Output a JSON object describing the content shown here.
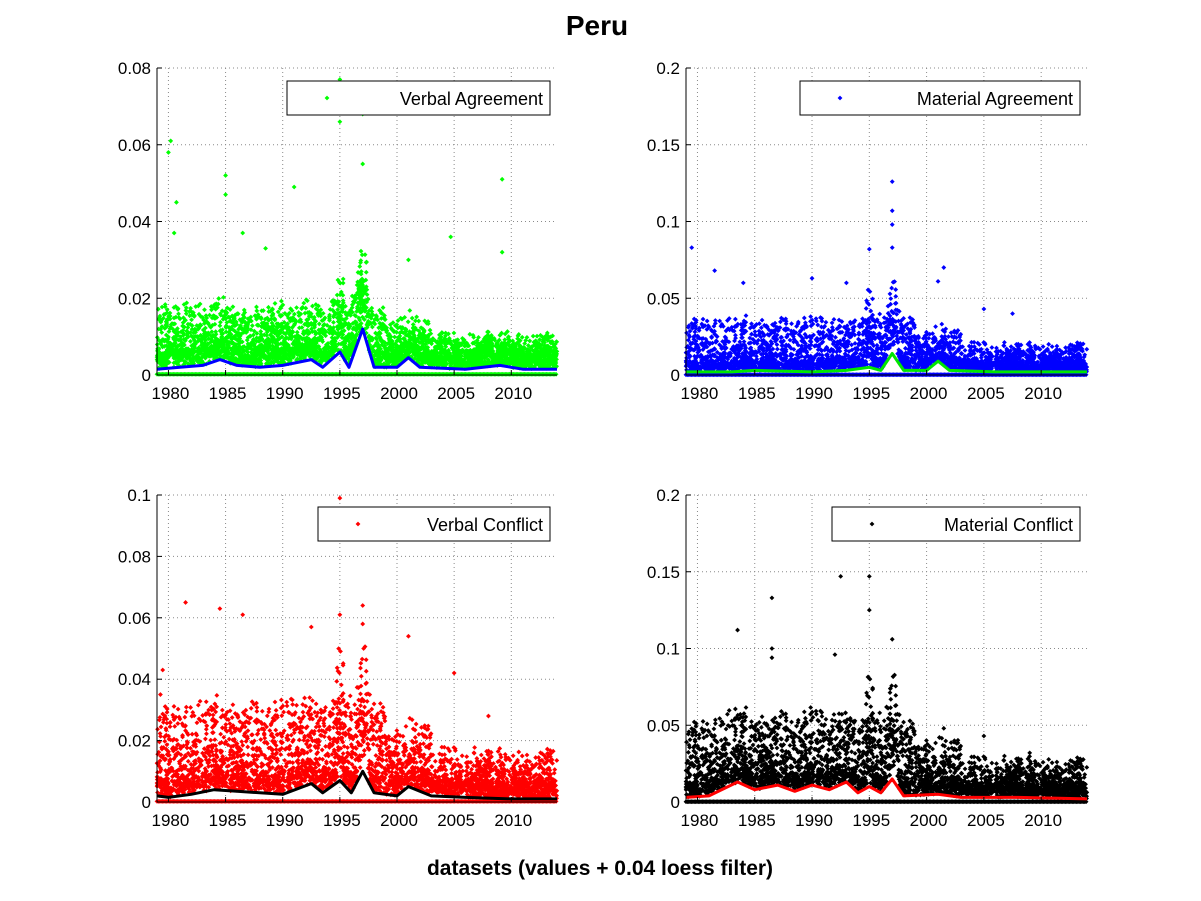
{
  "figure": {
    "title": "Peru",
    "xlabel": "datasets (values + 0.04 loess filter)"
  },
  "chart_data": [
    {
      "type": "scatter",
      "name": "Verbal Agreement",
      "legend": "top-right",
      "grid": true,
      "xlim": [
        1979,
        2014
      ],
      "ylim": [
        0,
        0.08
      ],
      "yticks": [
        "0",
        "0.02",
        "0.04",
        "0.06",
        "0.08"
      ],
      "ytick_values": [
        0,
        0.02,
        0.04,
        0.06,
        0.08
      ],
      "xticks": [
        "1980",
        "1985",
        "1990",
        "1995",
        "2000",
        "2005",
        "2010"
      ],
      "xtick_values": [
        1980,
        1985,
        1990,
        1995,
        2000,
        2005,
        2010
      ],
      "marker_color": "#00ff00",
      "trend_color": "#0000ff",
      "scatter_base": 0.004,
      "scatter_spread": 0.006,
      "points_per_year": 110,
      "highlights": [
        {
          "x": 1980.2,
          "y": 0.061
        },
        {
          "x": 1980.0,
          "y": 0.058
        },
        {
          "x": 1980.7,
          "y": 0.045
        },
        {
          "x": 1980.5,
          "y": 0.037
        },
        {
          "x": 1985.0,
          "y": 0.052
        },
        {
          "x": 1985.0,
          "y": 0.047
        },
        {
          "x": 1986.5,
          "y": 0.037
        },
        {
          "x": 1988.5,
          "y": 0.033
        },
        {
          "x": 1991.0,
          "y": 0.049
        },
        {
          "x": 1995.0,
          "y": 0.077
        },
        {
          "x": 1995.0,
          "y": 0.066
        },
        {
          "x": 1997.0,
          "y": 0.075
        },
        {
          "x": 1997.0,
          "y": 0.068
        },
        {
          "x": 1997.0,
          "y": 0.055
        },
        {
          "x": 2001.0,
          "y": 0.03
        },
        {
          "x": 2004.7,
          "y": 0.036
        },
        {
          "x": 2009.2,
          "y": 0.051
        },
        {
          "x": 2009.2,
          "y": 0.032
        }
      ],
      "trend": [
        {
          "x": 1979,
          "y": 0.0015
        },
        {
          "x": 1981,
          "y": 0.002
        },
        {
          "x": 1983,
          "y": 0.0025
        },
        {
          "x": 1984.5,
          "y": 0.004
        },
        {
          "x": 1986,
          "y": 0.0025
        },
        {
          "x": 1988,
          "y": 0.002
        },
        {
          "x": 1990,
          "y": 0.0025
        },
        {
          "x": 1992.5,
          "y": 0.004
        },
        {
          "x": 1993.5,
          "y": 0.002
        },
        {
          "x": 1995,
          "y": 0.006
        },
        {
          "x": 1995.8,
          "y": 0.002
        },
        {
          "x": 1997,
          "y": 0.012
        },
        {
          "x": 1998,
          "y": 0.002
        },
        {
          "x": 2000,
          "y": 0.002
        },
        {
          "x": 2001,
          "y": 0.0045
        },
        {
          "x": 2002,
          "y": 0.002
        },
        {
          "x": 2006,
          "y": 0.0015
        },
        {
          "x": 2009,
          "y": 0.0025
        },
        {
          "x": 2011,
          "y": 0.0015
        },
        {
          "x": 2014,
          "y": 0.0015
        }
      ]
    },
    {
      "type": "scatter",
      "name": "Material Agreement",
      "legend": "top-right",
      "grid": true,
      "xlim": [
        1979,
        2014
      ],
      "ylim": [
        0,
        0.2
      ],
      "yticks": [
        "0",
        "0.05",
        "0.1",
        "0.15",
        "0.2"
      ],
      "ytick_values": [
        0,
        0.05,
        0.1,
        0.15,
        0.2
      ],
      "xticks": [
        "1980",
        "1985",
        "1990",
        "1995",
        "2000",
        "2005",
        "2010"
      ],
      "xtick_values": [
        1980,
        1985,
        1990,
        1995,
        2000,
        2005,
        2010
      ],
      "marker_color": "#0000ff",
      "trend_color": "#00e600",
      "scatter_base": 0.006,
      "scatter_spread": 0.014,
      "points_per_year": 90,
      "highlights": [
        {
          "x": 1979.5,
          "y": 0.083
        },
        {
          "x": 1981.5,
          "y": 0.068
        },
        {
          "x": 1984.0,
          "y": 0.06
        },
        {
          "x": 1990.0,
          "y": 0.063
        },
        {
          "x": 1993.0,
          "y": 0.06
        },
        {
          "x": 1995.0,
          "y": 0.082
        },
        {
          "x": 1997.0,
          "y": 0.126
        },
        {
          "x": 1997.0,
          "y": 0.107
        },
        {
          "x": 1997.0,
          "y": 0.098
        },
        {
          "x": 1997.0,
          "y": 0.083
        },
        {
          "x": 2001.5,
          "y": 0.07
        },
        {
          "x": 2001.0,
          "y": 0.061
        },
        {
          "x": 2005.0,
          "y": 0.043
        },
        {
          "x": 2007.5,
          "y": 0.04
        }
      ],
      "trend": [
        {
          "x": 1979,
          "y": 0.002
        },
        {
          "x": 1983,
          "y": 0.002
        },
        {
          "x": 1985,
          "y": 0.003
        },
        {
          "x": 1990,
          "y": 0.002
        },
        {
          "x": 1993,
          "y": 0.003
        },
        {
          "x": 1995,
          "y": 0.005
        },
        {
          "x": 1996,
          "y": 0.003
        },
        {
          "x": 1997,
          "y": 0.014
        },
        {
          "x": 1998,
          "y": 0.003
        },
        {
          "x": 2000,
          "y": 0.003
        },
        {
          "x": 2001,
          "y": 0.009
        },
        {
          "x": 2002,
          "y": 0.003
        },
        {
          "x": 2006,
          "y": 0.002
        },
        {
          "x": 2010,
          "y": 0.002
        },
        {
          "x": 2014,
          "y": 0.002
        }
      ]
    },
    {
      "type": "scatter",
      "name": "Verbal Conflict",
      "legend": "top-right",
      "grid": true,
      "xlim": [
        1979,
        2014
      ],
      "ylim": [
        0,
        0.1
      ],
      "yticks": [
        "0",
        "0.02",
        "0.04",
        "0.06",
        "0.08",
        "0.1"
      ],
      "ytick_values": [
        0,
        0.02,
        0.04,
        0.06,
        0.08,
        0.1
      ],
      "xticks": [
        "1980",
        "1985",
        "1990",
        "1995",
        "2000",
        "2005",
        "2010"
      ],
      "xtick_values": [
        1980,
        1985,
        1990,
        1995,
        2000,
        2005,
        2010
      ],
      "marker_color": "#ff0000",
      "trend_color": "#000000",
      "scatter_base": 0.005,
      "scatter_spread": 0.012,
      "points_per_year": 100,
      "highlights": [
        {
          "x": 1979.5,
          "y": 0.043
        },
        {
          "x": 1979.3,
          "y": 0.035
        },
        {
          "x": 1981.5,
          "y": 0.065
        },
        {
          "x": 1984.5,
          "y": 0.063
        },
        {
          "x": 1986.5,
          "y": 0.061
        },
        {
          "x": 1992.5,
          "y": 0.057
        },
        {
          "x": 1995.0,
          "y": 0.099
        },
        {
          "x": 1995.0,
          "y": 0.061
        },
        {
          "x": 1997.0,
          "y": 0.064
        },
        {
          "x": 1997.0,
          "y": 0.058
        },
        {
          "x": 2001.0,
          "y": 0.054
        },
        {
          "x": 2005.0,
          "y": 0.042
        },
        {
          "x": 2008.0,
          "y": 0.028
        }
      ],
      "trend": [
        {
          "x": 1979,
          "y": 0.002
        },
        {
          "x": 1980,
          "y": 0.0015
        },
        {
          "x": 1982,
          "y": 0.0025
        },
        {
          "x": 1984,
          "y": 0.004
        },
        {
          "x": 1986,
          "y": 0.0035
        },
        {
          "x": 1988,
          "y": 0.003
        },
        {
          "x": 1990,
          "y": 0.0025
        },
        {
          "x": 1992.5,
          "y": 0.006
        },
        {
          "x": 1993.5,
          "y": 0.003
        },
        {
          "x": 1995,
          "y": 0.007
        },
        {
          "x": 1996,
          "y": 0.003
        },
        {
          "x": 1997,
          "y": 0.01
        },
        {
          "x": 1998,
          "y": 0.003
        },
        {
          "x": 2000,
          "y": 0.002
        },
        {
          "x": 2001,
          "y": 0.005
        },
        {
          "x": 2003,
          "y": 0.002
        },
        {
          "x": 2006,
          "y": 0.0015
        },
        {
          "x": 2010,
          "y": 0.001
        },
        {
          "x": 2014,
          "y": 0.001
        }
      ]
    },
    {
      "type": "scatter",
      "name": "Material Conflict",
      "legend": "top-right",
      "grid": true,
      "xlim": [
        1979,
        2014
      ],
      "ylim": [
        0,
        0.2
      ],
      "yticks": [
        "0",
        "0.05",
        "0.1",
        "0.15",
        "0.2"
      ],
      "ytick_values": [
        0,
        0.05,
        0.1,
        0.15,
        0.2
      ],
      "xticks": [
        "1980",
        "1985",
        "1990",
        "1995",
        "2000",
        "2005",
        "2010"
      ],
      "xtick_values": [
        1980,
        1985,
        1990,
        1995,
        2000,
        2005,
        2010
      ],
      "marker_color": "#000000",
      "trend_color": "#ff0000",
      "scatter_base": 0.008,
      "scatter_spread": 0.02,
      "points_per_year": 110,
      "highlights": [
        {
          "x": 1983.5,
          "y": 0.112
        },
        {
          "x": 1986.5,
          "y": 0.133
        },
        {
          "x": 1986.5,
          "y": 0.1
        },
        {
          "x": 1986.5,
          "y": 0.094
        },
        {
          "x": 1992.5,
          "y": 0.147
        },
        {
          "x": 1992.0,
          "y": 0.096
        },
        {
          "x": 1995.0,
          "y": 0.147
        },
        {
          "x": 1995.0,
          "y": 0.125
        },
        {
          "x": 1997.0,
          "y": 0.106
        },
        {
          "x": 2001.5,
          "y": 0.048
        },
        {
          "x": 2005.0,
          "y": 0.043
        },
        {
          "x": 2009.0,
          "y": 0.032
        }
      ],
      "trend": [
        {
          "x": 1979,
          "y": 0.003
        },
        {
          "x": 1981,
          "y": 0.004
        },
        {
          "x": 1983.5,
          "y": 0.013
        },
        {
          "x": 1985,
          "y": 0.008
        },
        {
          "x": 1987,
          "y": 0.011
        },
        {
          "x": 1988.5,
          "y": 0.007
        },
        {
          "x": 1990,
          "y": 0.011
        },
        {
          "x": 1991.5,
          "y": 0.008
        },
        {
          "x": 1993,
          "y": 0.013
        },
        {
          "x": 1994,
          "y": 0.006
        },
        {
          "x": 1995,
          "y": 0.01
        },
        {
          "x": 1996,
          "y": 0.006
        },
        {
          "x": 1997,
          "y": 0.015
        },
        {
          "x": 1998,
          "y": 0.004
        },
        {
          "x": 2001,
          "y": 0.005
        },
        {
          "x": 2003,
          "y": 0.003
        },
        {
          "x": 2008,
          "y": 0.003
        },
        {
          "x": 2014,
          "y": 0.002
        }
      ]
    }
  ]
}
